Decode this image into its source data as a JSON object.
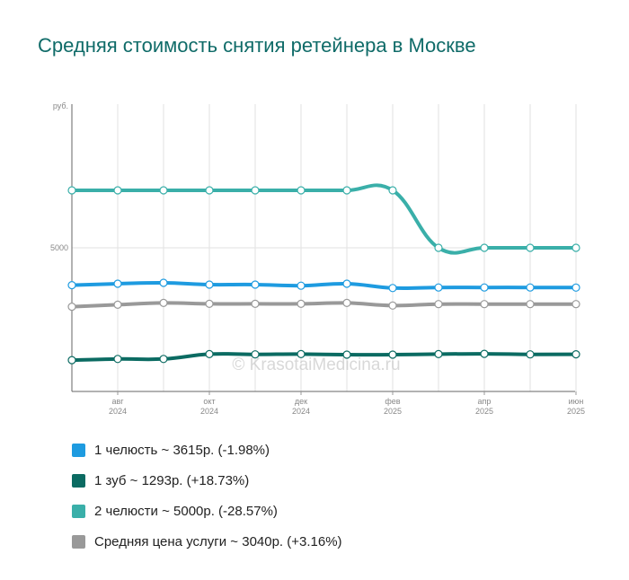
{
  "title": "Средняя стоимость снятия ретейнера в Москве",
  "watermark": "© KrasotaiMedicina.ru",
  "chart_data": {
    "type": "line",
    "title": "Средняя стоимость снятия ретейнера в Москве",
    "ylabel": "руб.",
    "ylim": [
      0,
      10000
    ],
    "y_ticks": [
      5000
    ],
    "grid": true,
    "legend_position": "bottom",
    "x_months": [
      "2024-07",
      "2024-08",
      "2024-09",
      "2024-10",
      "2024-11",
      "2024-12",
      "2025-01",
      "2025-02",
      "2025-03",
      "2025-04",
      "2025-05",
      "2025-06"
    ],
    "x_tick_labels": [
      {
        "month": "2024-08",
        "line1": "авг",
        "line2": "2024"
      },
      {
        "month": "2024-10",
        "line1": "окт",
        "line2": "2024"
      },
      {
        "month": "2024-12",
        "line1": "дек",
        "line2": "2024"
      },
      {
        "month": "2025-02",
        "line1": "фев",
        "line2": "2025"
      },
      {
        "month": "2025-04",
        "line1": "апр",
        "line2": "2025"
      },
      {
        "month": "2025-06",
        "line1": "июн",
        "line2": "2025"
      }
    ],
    "series": [
      {
        "name": "2 челюсти",
        "color": "#3aafa9",
        "values": [
          7000,
          7000,
          7000,
          7000,
          7000,
          7000,
          7000,
          7000,
          5000,
          5000,
          5000,
          5000
        ]
      },
      {
        "name": "1 челюсть",
        "color": "#1e9be0",
        "values": [
          3700,
          3750,
          3780,
          3720,
          3720,
          3680,
          3750,
          3600,
          3620,
          3620,
          3620,
          3615
        ]
      },
      {
        "name": "Средняя цена услуги",
        "color": "#999999",
        "values": [
          2950,
          3020,
          3080,
          3050,
          3050,
          3050,
          3080,
          2990,
          3040,
          3040,
          3040,
          3040
        ]
      },
      {
        "name": "1 зуб",
        "color": "#0b6b62",
        "values": [
          1090,
          1130,
          1130,
          1300,
          1290,
          1300,
          1280,
          1280,
          1300,
          1310,
          1290,
          1293
        ]
      }
    ]
  },
  "legend": [
    {
      "label": "1 челюсть ~ 3615р. (-1.98%)",
      "color": "#1e9be0"
    },
    {
      "label": "1 зуб ~ 1293р. (+18.73%)",
      "color": "#0b6b62"
    },
    {
      "label": "2 челюсти ~ 5000р. (-28.57%)",
      "color": "#3aafa9"
    },
    {
      "label": "Средняя цена услуги ~ 3040р. (+3.16%)",
      "color": "#999999"
    }
  ]
}
